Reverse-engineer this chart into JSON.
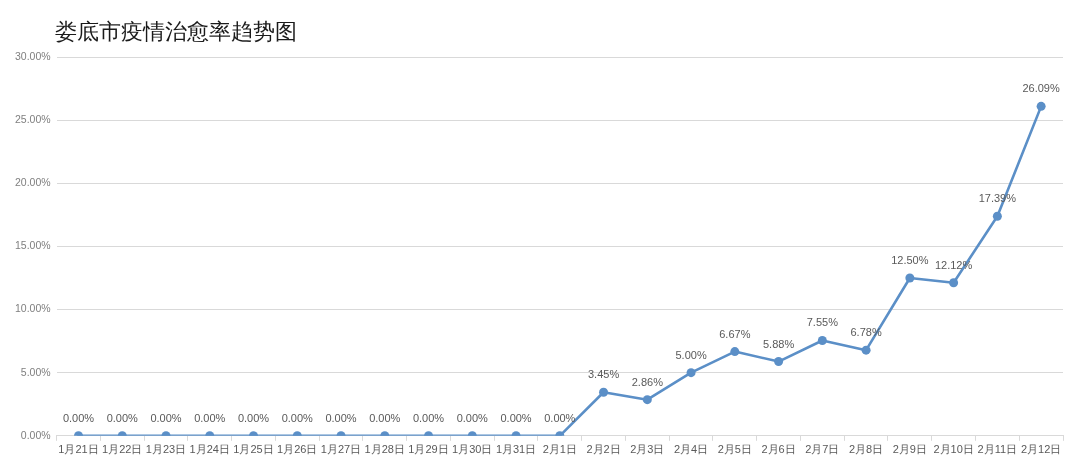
{
  "chart_data": {
    "type": "line",
    "title": "娄底市疫情治愈率趋势图",
    "categories": [
      "1月21日",
      "1月22日",
      "1月23日",
      "1月24日",
      "1月25日",
      "1月26日",
      "1月27日",
      "1月28日",
      "1月29日",
      "1月30日",
      "1月31日",
      "2月1日",
      "2月2日",
      "2月3日",
      "2月4日",
      "2月5日",
      "2月6日",
      "2月7日",
      "2月8日",
      "2月9日",
      "2月10日",
      "2月11日",
      "2月12日"
    ],
    "series": [
      {
        "color": "#5b8fc7",
        "values": [
          0,
          0,
          0,
          0,
          0,
          0,
          0,
          0,
          0,
          0,
          0,
          0,
          3.45,
          2.86,
          5.0,
          6.67,
          5.88,
          7.55,
          6.78,
          12.5,
          12.12,
          17.39,
          26.09
        ],
        "value_labels": [
          "0.00%",
          "0.00%",
          "0.00%",
          "0.00%",
          "0.00%",
          "0.00%",
          "0.00%",
          "0.00%",
          "0.00%",
          "0.00%",
          "0.00%",
          "0.00%",
          "3.45%",
          "2.86%",
          "5.00%",
          "6.67%",
          "5.88%",
          "7.55%",
          "6.78%",
          "12.50%",
          "12.12%",
          "17.39%",
          "26.09%"
        ]
      }
    ],
    "ylim": [
      0,
      30
    ],
    "yticks": [
      {
        "value": 0,
        "label": "0.00%"
      },
      {
        "value": 5,
        "label": "5.00%"
      },
      {
        "value": 10,
        "label": "10.00%"
      },
      {
        "value": 15,
        "label": "15.00%"
      },
      {
        "value": 20,
        "label": "20.00%"
      },
      {
        "value": 25,
        "label": "25.00%"
      },
      {
        "value": 30,
        "label": "30.00%"
      }
    ],
    "grid": "y",
    "marker": "circle",
    "line_style": "solid"
  }
}
